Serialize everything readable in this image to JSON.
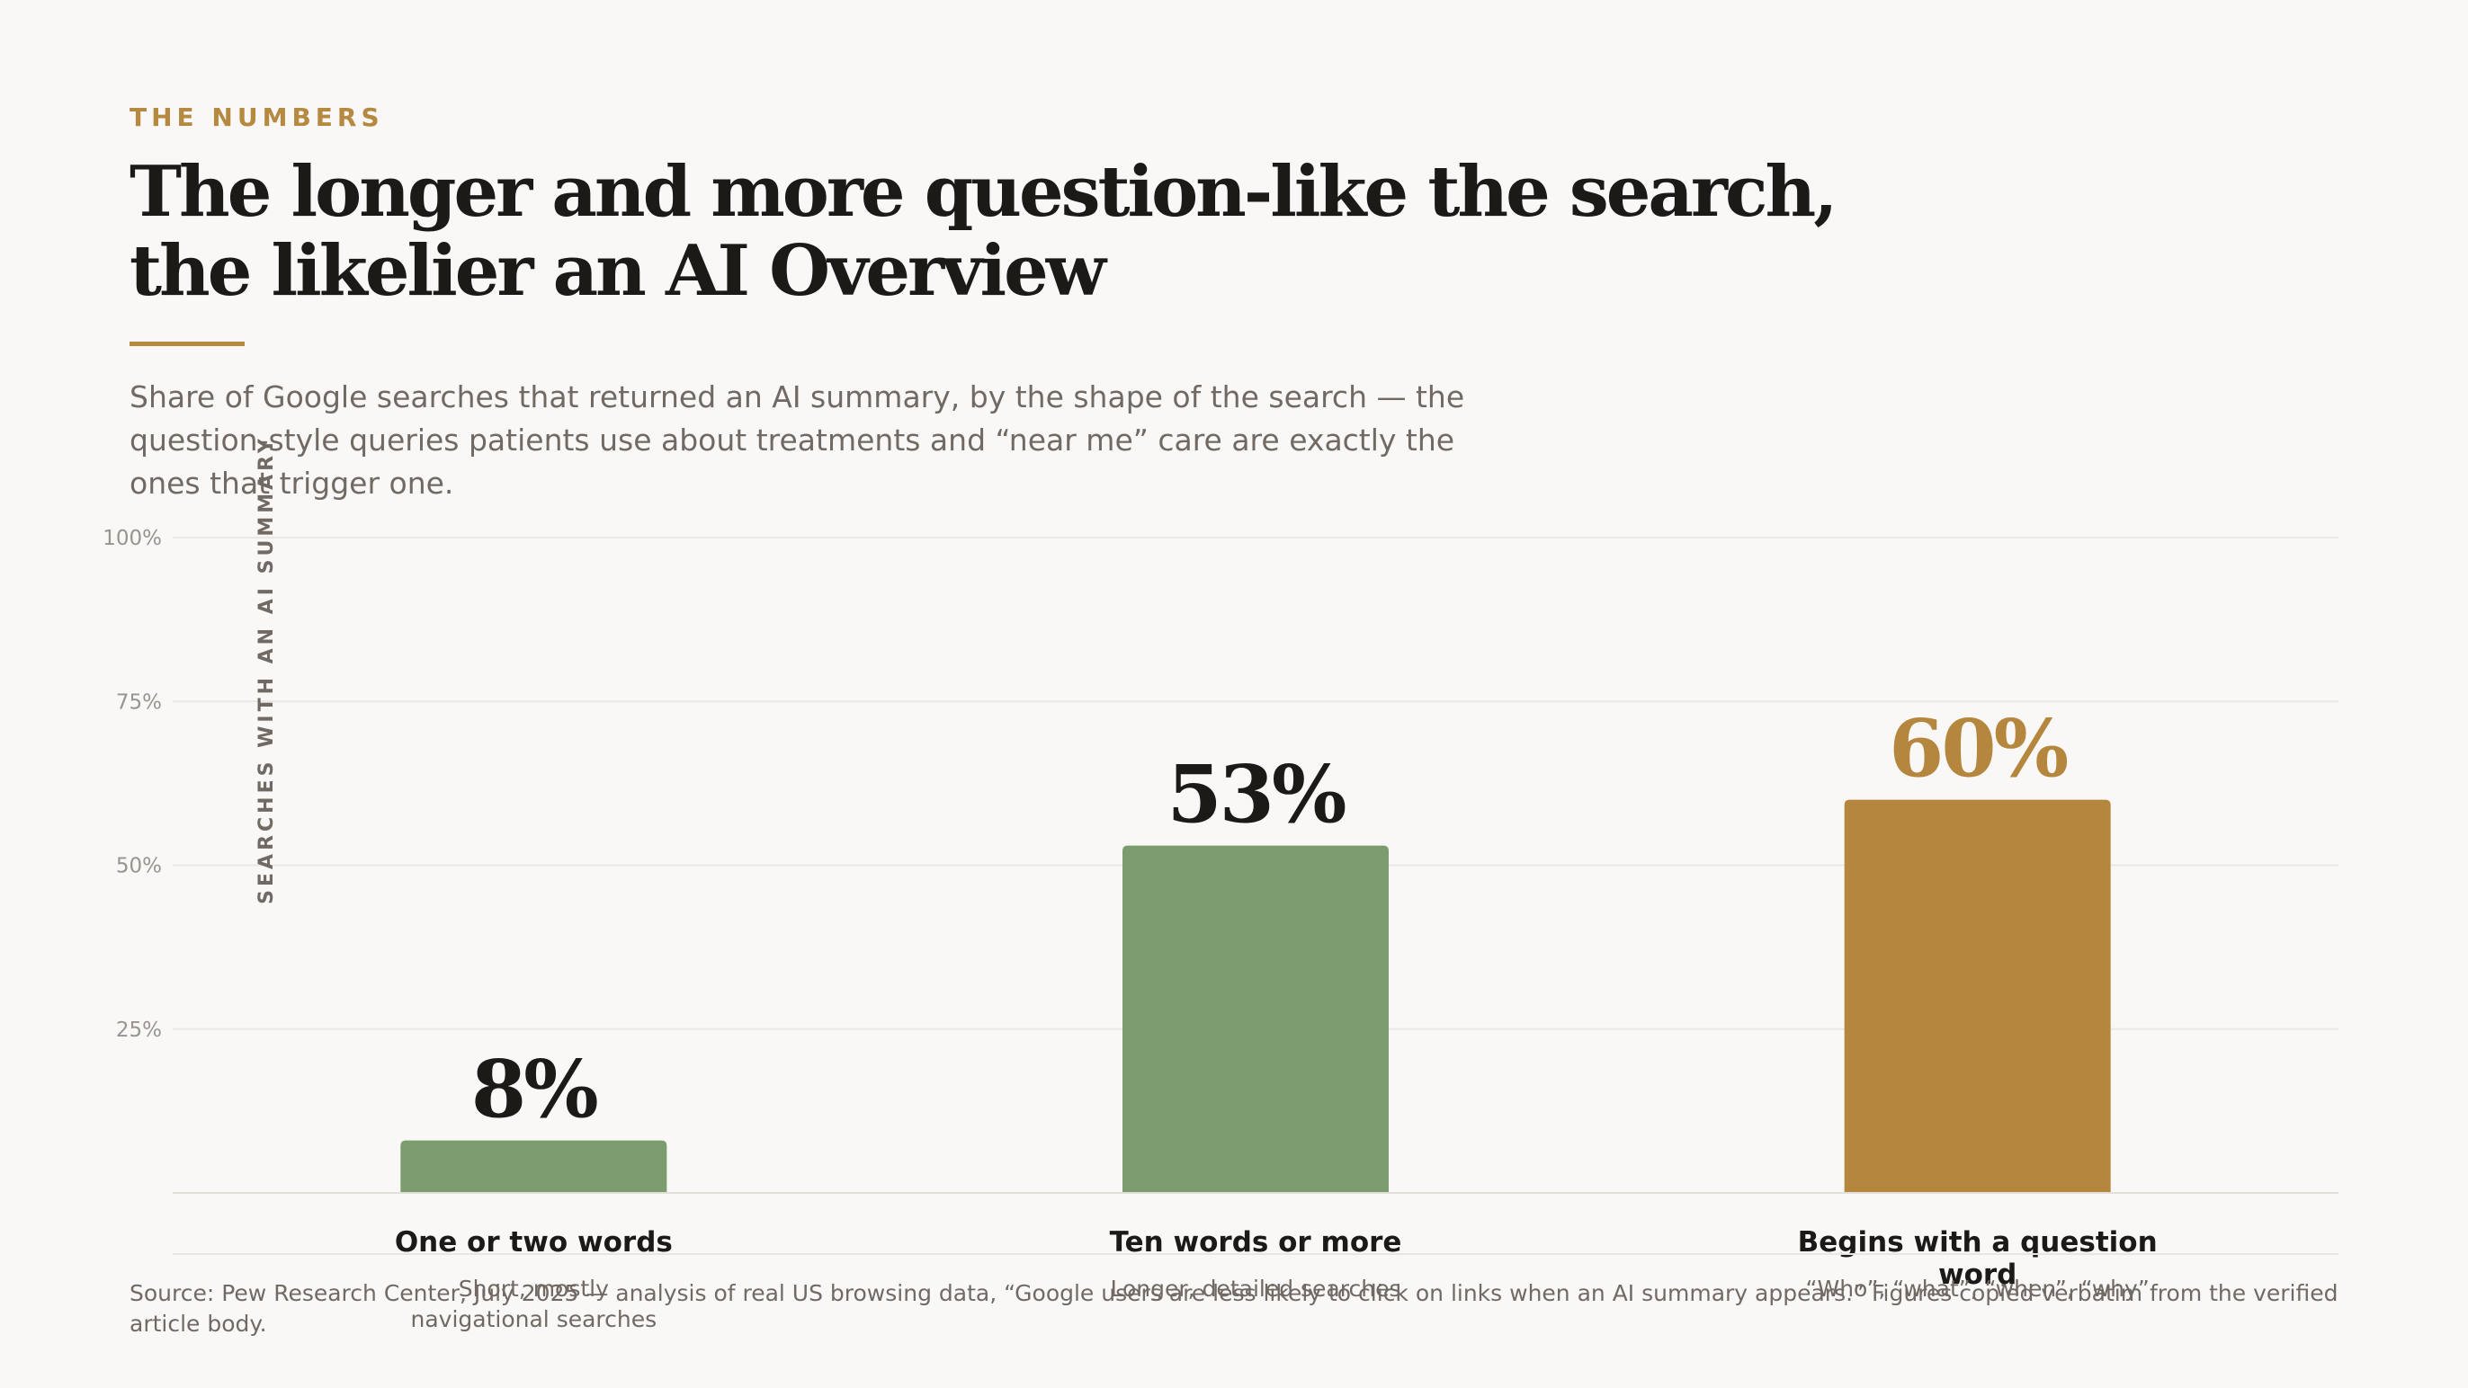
{
  "header": {
    "eyebrow": "THE NUMBERS",
    "title": "The longer and more question-like the search, the likelier an AI Overview",
    "subtitle": "Share of Google searches that returned an AI summary, by the shape of the search — the question-style queries patients use about treatments and “near me” care are exactly the ones that trigger one."
  },
  "footer": {
    "source": "Source: Pew Research Center, July 2025 — analysis of real US browsing data, “Google users are less likely to click on links when an AI summary appears.” Figures copied verbatim from the verified article body."
  },
  "colors": {
    "green": "#7b9d6d",
    "gold": "#b5873e",
    "text_dark": "#1b1a17",
    "text_muted": "#716a64",
    "grid": "#ebe8e4"
  },
  "chart_data": {
    "type": "bar",
    "ylabel": "SEARCHES WITH AN AI SUMMARY",
    "ylim": [
      0,
      100
    ],
    "yticks": [
      25,
      50,
      75,
      100
    ],
    "ytick_labels": [
      "25%",
      "50%",
      "75%",
      "100%"
    ],
    "grid": true,
    "categories": [
      "One or two words",
      "Ten words or more",
      "Begins with a question word"
    ],
    "category_notes": [
      "Short, mostly navigational searches",
      "Longer, detailed searches",
      "“Who”, “what”, “when”, “why”"
    ],
    "values": [
      8,
      53,
      60
    ],
    "value_labels": [
      "8%",
      "53%",
      "60%"
    ],
    "highlight_index": 2
  }
}
